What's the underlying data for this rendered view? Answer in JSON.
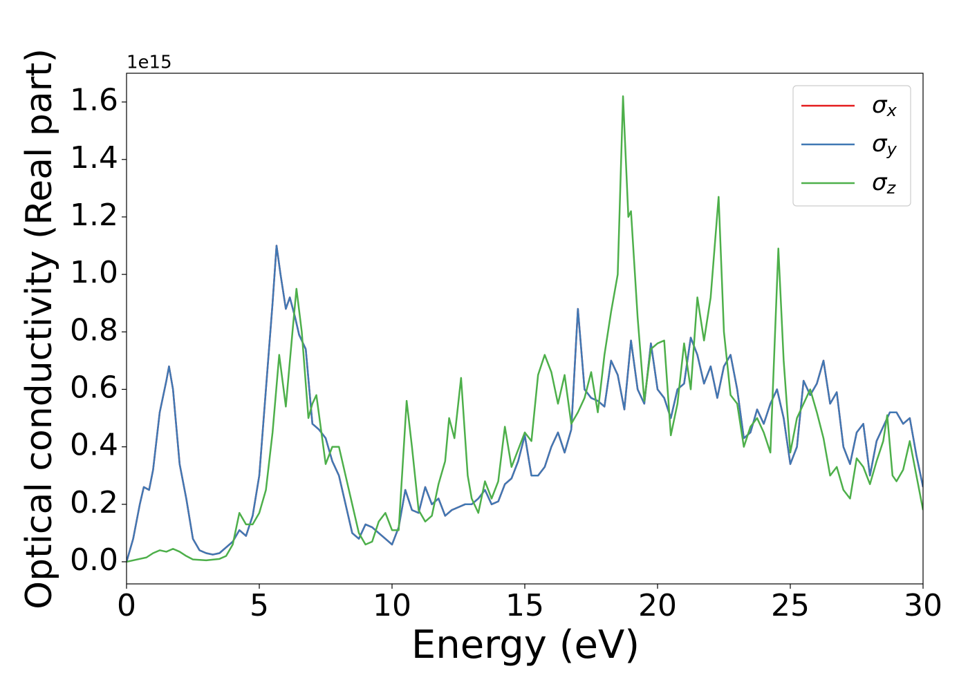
{
  "chart_data": {
    "type": "line",
    "xlabel": "Energy (eV)",
    "ylabel": "Optical conductivity (Real part)",
    "y_offset_label": "1e15",
    "xlim": [
      0,
      30
    ],
    "ylim": [
      -0.077,
      1.7
    ],
    "xticks": [
      0,
      5,
      10,
      15,
      20,
      25,
      30
    ],
    "yticks": [
      {
        "value": 0,
        "label": "0.0"
      },
      0.2,
      0.4,
      0.6,
      0.8,
      {
        "value": 1,
        "label": "1.0"
      },
      1.2,
      1.4,
      1.6
    ],
    "grid": false,
    "legend": "upper right",
    "series": [
      {
        "name": "σx",
        "color": "#e41a1c",
        "x": [
          0,
          0.25,
          0.5,
          0.65,
          0.85,
          1,
          1.25,
          1.5,
          1.6,
          1.75,
          2,
          2.25,
          2.5,
          2.75,
          3,
          3.25,
          3.5,
          3.75,
          4,
          4.25,
          4.5,
          4.75,
          5,
          5.25,
          5.5,
          5.65,
          5.8,
          6,
          6.15,
          6.35,
          6.5,
          6.75,
          7,
          7.25,
          7.5,
          7.75,
          8,
          8.25,
          8.5,
          8.75,
          9,
          9.25,
          9.5,
          9.75,
          10,
          10.25,
          10.5,
          10.75,
          11,
          11.25,
          11.5,
          11.75,
          12,
          12.25,
          12.5,
          12.75,
          13,
          13.25,
          13.5,
          13.75,
          14,
          14.25,
          14.5,
          14.75,
          15,
          15.25,
          15.5,
          15.75,
          16,
          16.25,
          16.5,
          16.75,
          17,
          17.25,
          17.5,
          17.75,
          18,
          18.25,
          18.5,
          18.75,
          19,
          19.25,
          19.5,
          19.75,
          20,
          20.25,
          20.5,
          20.75,
          21,
          21.25,
          21.5,
          21.75,
          22,
          22.25,
          22.5,
          22.75,
          23,
          23.25,
          23.5,
          23.75,
          24,
          24.25,
          24.5,
          24.75,
          25,
          25.25,
          25.5,
          25.75,
          26,
          26.25,
          26.5,
          26.75,
          27,
          27.25,
          27.5,
          27.75,
          28,
          28.25,
          28.5,
          28.75,
          29,
          29.25,
          29.5,
          29.75,
          30
        ],
        "values": [
          0,
          0.08,
          0.2,
          0.26,
          0.25,
          0.32,
          0.52,
          0.63,
          0.68,
          0.6,
          0.34,
          0.22,
          0.08,
          0.04,
          0.03,
          0.025,
          0.03,
          0.05,
          0.07,
          0.11,
          0.09,
          0.16,
          0.3,
          0.6,
          0.9,
          1.1,
          1.0,
          0.88,
          0.92,
          0.85,
          0.79,
          0.74,
          0.48,
          0.46,
          0.43,
          0.35,
          0.3,
          0.2,
          0.1,
          0.08,
          0.13,
          0.12,
          0.1,
          0.08,
          0.06,
          0.12,
          0.25,
          0.18,
          0.17,
          0.26,
          0.2,
          0.22,
          0.16,
          0.18,
          0.19,
          0.2,
          0.2,
          0.22,
          0.25,
          0.2,
          0.21,
          0.27,
          0.29,
          0.35,
          0.44,
          0.3,
          0.3,
          0.33,
          0.4,
          0.45,
          0.38,
          0.46,
          0.88,
          0.6,
          0.57,
          0.56,
          0.54,
          0.7,
          0.65,
          0.53,
          0.77,
          0.6,
          0.55,
          0.76,
          0.6,
          0.57,
          0.5,
          0.6,
          0.62,
          0.78,
          0.72,
          0.62,
          0.68,
          0.57,
          0.68,
          0.72,
          0.6,
          0.43,
          0.45,
          0.53,
          0.48,
          0.55,
          0.6,
          0.5,
          0.34,
          0.4,
          0.63,
          0.58,
          0.62,
          0.7,
          0.55,
          0.59,
          0.4,
          0.34,
          0.45,
          0.48,
          0.3,
          0.42,
          0.47,
          0.52,
          0.52,
          0.48,
          0.5,
          0.37,
          0.26
        ]
      },
      {
        "name": "σy",
        "color": "#3f78b4",
        "x": [
          0,
          0.25,
          0.5,
          0.65,
          0.85,
          1,
          1.25,
          1.5,
          1.6,
          1.75,
          2,
          2.25,
          2.5,
          2.75,
          3,
          3.25,
          3.5,
          3.75,
          4,
          4.25,
          4.5,
          4.75,
          5,
          5.25,
          5.5,
          5.65,
          5.8,
          6,
          6.15,
          6.35,
          6.5,
          6.75,
          7,
          7.25,
          7.5,
          7.75,
          8,
          8.25,
          8.5,
          8.75,
          9,
          9.25,
          9.5,
          9.75,
          10,
          10.25,
          10.5,
          10.75,
          11,
          11.25,
          11.5,
          11.75,
          12,
          12.25,
          12.5,
          12.75,
          13,
          13.25,
          13.5,
          13.75,
          14,
          14.25,
          14.5,
          14.75,
          15,
          15.25,
          15.5,
          15.75,
          16,
          16.25,
          16.5,
          16.75,
          17,
          17.25,
          17.5,
          17.75,
          18,
          18.25,
          18.5,
          18.75,
          19,
          19.25,
          19.5,
          19.75,
          20,
          20.25,
          20.5,
          20.75,
          21,
          21.25,
          21.5,
          21.75,
          22,
          22.25,
          22.5,
          22.75,
          23,
          23.25,
          23.5,
          23.75,
          24,
          24.25,
          24.5,
          24.75,
          25,
          25.25,
          25.5,
          25.75,
          26,
          26.25,
          26.5,
          26.75,
          27,
          27.25,
          27.5,
          27.75,
          28,
          28.25,
          28.5,
          28.75,
          29,
          29.25,
          29.5,
          29.75,
          30
        ],
        "values": [
          0,
          0.08,
          0.2,
          0.26,
          0.25,
          0.32,
          0.52,
          0.63,
          0.68,
          0.6,
          0.34,
          0.22,
          0.08,
          0.04,
          0.03,
          0.025,
          0.03,
          0.05,
          0.07,
          0.11,
          0.09,
          0.16,
          0.3,
          0.6,
          0.9,
          1.1,
          1.0,
          0.88,
          0.92,
          0.85,
          0.79,
          0.74,
          0.48,
          0.46,
          0.43,
          0.35,
          0.3,
          0.2,
          0.1,
          0.08,
          0.13,
          0.12,
          0.1,
          0.08,
          0.06,
          0.12,
          0.25,
          0.18,
          0.17,
          0.26,
          0.2,
          0.22,
          0.16,
          0.18,
          0.19,
          0.2,
          0.2,
          0.22,
          0.25,
          0.2,
          0.21,
          0.27,
          0.29,
          0.35,
          0.44,
          0.3,
          0.3,
          0.33,
          0.4,
          0.45,
          0.38,
          0.46,
          0.88,
          0.6,
          0.57,
          0.56,
          0.54,
          0.7,
          0.65,
          0.53,
          0.77,
          0.6,
          0.55,
          0.76,
          0.6,
          0.57,
          0.5,
          0.6,
          0.62,
          0.78,
          0.72,
          0.62,
          0.68,
          0.57,
          0.68,
          0.72,
          0.6,
          0.43,
          0.45,
          0.53,
          0.48,
          0.55,
          0.6,
          0.5,
          0.34,
          0.4,
          0.63,
          0.58,
          0.62,
          0.7,
          0.55,
          0.59,
          0.4,
          0.34,
          0.45,
          0.48,
          0.3,
          0.42,
          0.47,
          0.52,
          0.52,
          0.48,
          0.5,
          0.37,
          0.26
        ]
      },
      {
        "name": "σz",
        "color": "#4daf4a",
        "x": [
          0,
          0.5,
          0.75,
          1,
          1.25,
          1.5,
          1.75,
          2,
          2.25,
          2.5,
          3,
          3.5,
          3.75,
          4,
          4.25,
          4.5,
          4.75,
          5,
          5.25,
          5.5,
          5.75,
          6,
          6.25,
          6.4,
          6.6,
          6.85,
          7,
          7.15,
          7.5,
          7.75,
          8,
          8.25,
          8.5,
          8.75,
          9,
          9.25,
          9.5,
          9.75,
          10,
          10.25,
          10.55,
          10.75,
          11,
          11.25,
          11.5,
          11.75,
          12,
          12.15,
          12.35,
          12.6,
          12.85,
          13,
          13.25,
          13.5,
          13.75,
          14,
          14.25,
          14.5,
          14.75,
          15,
          15.25,
          15.5,
          15.75,
          16,
          16.25,
          16.5,
          16.75,
          17,
          17.25,
          17.5,
          17.75,
          18,
          18.25,
          18.5,
          18.7,
          18.9,
          19,
          19.25,
          19.5,
          19.75,
          20,
          20.25,
          20.5,
          20.75,
          21,
          21.25,
          21.5,
          21.75,
          22,
          22.3,
          22.5,
          22.75,
          23,
          23.25,
          23.5,
          23.75,
          24,
          24.25,
          24.55,
          24.75,
          25,
          25.25,
          25.5,
          25.75,
          26,
          26.25,
          26.5,
          26.75,
          27,
          27.25,
          27.5,
          27.75,
          28,
          28.25,
          28.5,
          28.65,
          28.85,
          29,
          29.25,
          29.5,
          29.75,
          30
        ],
        "values": [
          0,
          0.01,
          0.015,
          0.03,
          0.04,
          0.035,
          0.045,
          0.035,
          0.02,
          0.008,
          0.005,
          0.01,
          0.02,
          0.06,
          0.17,
          0.13,
          0.13,
          0.17,
          0.25,
          0.45,
          0.72,
          0.54,
          0.8,
          0.95,
          0.8,
          0.5,
          0.55,
          0.58,
          0.34,
          0.4,
          0.4,
          0.3,
          0.2,
          0.1,
          0.06,
          0.07,
          0.14,
          0.17,
          0.11,
          0.11,
          0.56,
          0.4,
          0.18,
          0.14,
          0.16,
          0.27,
          0.35,
          0.5,
          0.43,
          0.64,
          0.3,
          0.22,
          0.17,
          0.28,
          0.22,
          0.28,
          0.47,
          0.33,
          0.39,
          0.45,
          0.42,
          0.65,
          0.72,
          0.66,
          0.55,
          0.65,
          0.48,
          0.52,
          0.57,
          0.66,
          0.52,
          0.72,
          0.87,
          1.0,
          1.62,
          1.2,
          1.22,
          0.85,
          0.56,
          0.74,
          0.76,
          0.77,
          0.44,
          0.55,
          0.76,
          0.6,
          0.92,
          0.77,
          0.92,
          1.27,
          0.8,
          0.58,
          0.55,
          0.4,
          0.47,
          0.5,
          0.45,
          0.38,
          1.09,
          0.7,
          0.38,
          0.5,
          0.55,
          0.6,
          0.52,
          0.43,
          0.3,
          0.33,
          0.25,
          0.22,
          0.36,
          0.33,
          0.27,
          0.35,
          0.42,
          0.51,
          0.3,
          0.28,
          0.32,
          0.42,
          0.3,
          0.18
        ]
      }
    ]
  }
}
